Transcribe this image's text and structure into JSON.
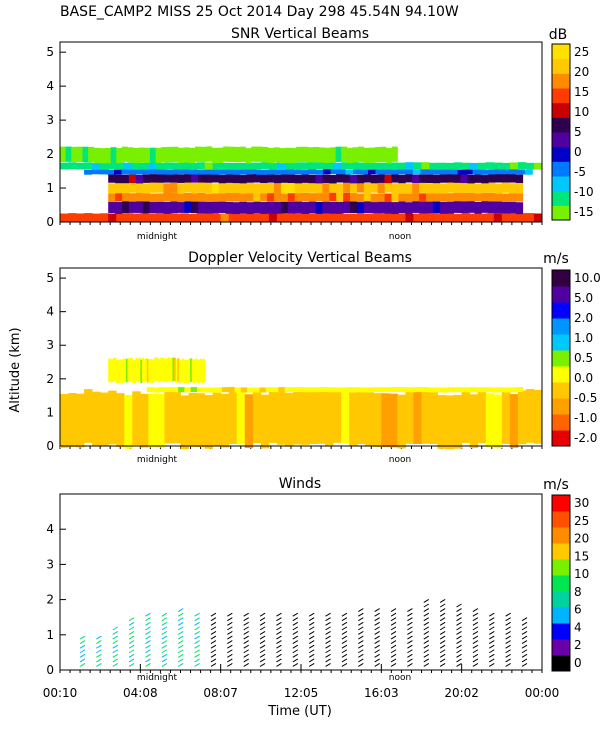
{
  "header": {
    "title": "BASE_CAMP2 MISS  25 Oct 2014 Day 298 45.54N  94.10W"
  },
  "shared": {
    "ylabel": "Altitude (km)",
    "xlabel": "Time (UT)",
    "midnight_label": "midnight",
    "noon_label": "noon"
  },
  "colors": {
    "snr_scale": [
      "#78f000",
      "#00e67a",
      "#00c8ff",
      "#0078ff",
      "#0000c8",
      "#5000a0",
      "#300050",
      "#c80000",
      "#ff3c00",
      "#ff8c00",
      "#ffc800",
      "#ffe000"
    ],
    "doppler_scale": [
      "#e60000",
      "#ff6400",
      "#ffa000",
      "#ffc800",
      "#ffff00",
      "#78f000",
      "#00c8ff",
      "#0096ff",
      "#0000ff",
      "#5000a0",
      "#320040"
    ],
    "winds_scale": [
      "#000000",
      "#6a00a8",
      "#0000ff",
      "#00b4ff",
      "#00d2a0",
      "#00e650",
      "#78f000",
      "#ffc800",
      "#ff8c00",
      "#ff5000",
      "#ff0000"
    ]
  },
  "chart_data": [
    {
      "type": "heatmap",
      "title": "SNR Vertical Beams",
      "unit": "dB",
      "ylim": [
        0,
        5.3
      ],
      "yticks": [
        0,
        1,
        2,
        3,
        4,
        5
      ],
      "colorbar_ticks": [
        25,
        20,
        15,
        10,
        5,
        0,
        -5,
        -10,
        -15
      ],
      "layers": [
        {
          "t0": 0.0,
          "t1": 1.0,
          "z0": 0.0,
          "z1": 0.25,
          "level": 8
        },
        {
          "t0": 0.1,
          "t1": 0.96,
          "z0": 0.25,
          "z1": 0.6,
          "level": 5
        },
        {
          "t0": 0.1,
          "t1": 0.96,
          "z0": 0.6,
          "z1": 0.85,
          "level": 9
        },
        {
          "t0": 0.1,
          "t1": 0.96,
          "z0": 0.85,
          "z1": 1.15,
          "level": 10
        },
        {
          "t0": 0.1,
          "t1": 0.96,
          "z0": 1.15,
          "z1": 1.4,
          "level": 6
        },
        {
          "t0": 0.05,
          "t1": 0.98,
          "z0": 1.4,
          "z1": 1.55,
          "level": 3
        },
        {
          "t0": 0.0,
          "t1": 1.0,
          "z0": 1.55,
          "z1": 1.75,
          "level": 1
        },
        {
          "t0": 0.0,
          "t1": 0.7,
          "z0": 1.75,
          "z1": 2.2,
          "level": 0
        }
      ]
    },
    {
      "type": "heatmap",
      "title": "Doppler Velocity Vertical Beams",
      "unit": "m/s",
      "ylim": [
        0,
        5.3
      ],
      "yticks": [
        0,
        1,
        2,
        3,
        4,
        5
      ],
      "colorbar_ticks": [
        10.0,
        5.0,
        2.0,
        1.0,
        0.5,
        0.0,
        -0.5,
        -1.0,
        -2.0
      ],
      "layers": [
        {
          "t0": 0.0,
          "t1": 1.0,
          "z0": 0.0,
          "z1": 1.6,
          "level": 3
        },
        {
          "t0": 0.18,
          "t1": 0.96,
          "z0": 1.6,
          "z1": 1.75,
          "level": 4
        },
        {
          "t0": 0.1,
          "t1": 0.3,
          "z0": 1.9,
          "z1": 2.6,
          "level": 4
        }
      ]
    },
    {
      "type": "scatter",
      "title": "Winds",
      "unit": "m/s",
      "ylim": [
        0,
        5
      ],
      "yticks": [
        0,
        1,
        2,
        3,
        4
      ],
      "xticks": [
        "00:10",
        "04:08",
        "08:07",
        "12:05",
        "16:03",
        "20:02",
        "00:00"
      ],
      "colorbar_ticks": [
        30,
        25,
        20,
        15,
        10,
        8,
        6,
        4,
        2,
        0
      ],
      "profile_tops_km": [
        1.0,
        0.9,
        1.2,
        1.5,
        1.6,
        1.6,
        1.7,
        1.6,
        1.6,
        1.6,
        1.6,
        1.6,
        1.6,
        1.6,
        1.6,
        1.6,
        1.6,
        1.7,
        1.7,
        1.7,
        1.7,
        2.0,
        2.0,
        1.9,
        1.7,
        1.6,
        1.6,
        1.5
      ]
    }
  ]
}
